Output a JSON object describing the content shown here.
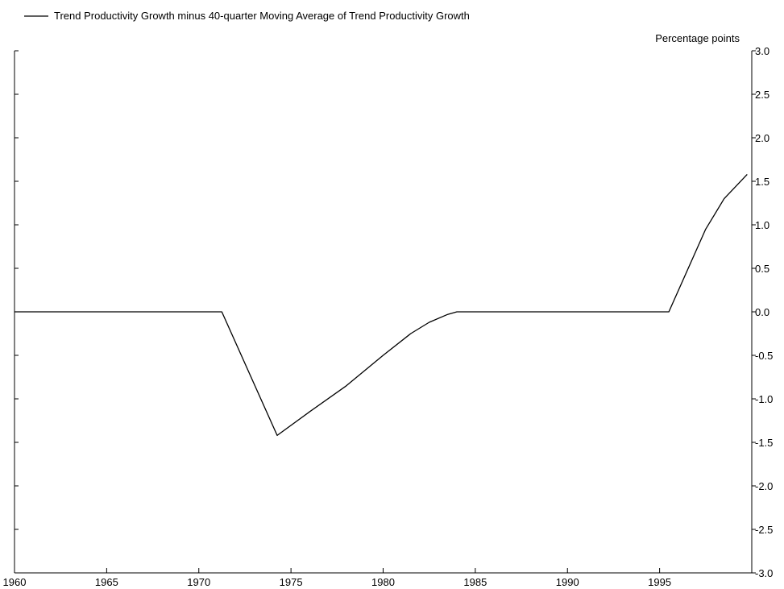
{
  "chart_data": {
    "type": "line",
    "title": "",
    "xlabel": "",
    "ylabel": "Percentage points",
    "xlim": [
      1960,
      2000
    ],
    "ylim": [
      -3.0,
      3.0
    ],
    "x_ticks": [
      1960,
      1965,
      1970,
      1975,
      1980,
      1985,
      1990,
      1995
    ],
    "x_tick_labels": [
      "1960",
      "1965",
      "1970",
      "1975",
      "1980",
      "1985",
      "1990",
      "1995"
    ],
    "y_ticks": [
      3.0,
      2.5,
      2.0,
      1.5,
      1.0,
      0.5,
      0.0,
      -0.5,
      -1.0,
      -1.5,
      -2.0,
      -2.5,
      -3.0
    ],
    "y_tick_labels": [
      "3.0",
      "2.5",
      "2.0",
      "1.5",
      "1.0",
      "0.5",
      "0.0",
      "-0.5",
      "-1.0",
      "-1.5",
      "-2.0",
      "-2.5",
      "-3.0"
    ],
    "y_axis_side": "right",
    "grid": false,
    "legend_position": "top-left",
    "series": [
      {
        "name": "Trend Productivity Growth minus 40-quarter Moving Average of Trend Productivity Growth",
        "color": "#000000",
        "x": [
          1960.0,
          1971.25,
          1974.25,
          1976.0,
          1978.0,
          1980.0,
          1981.5,
          1982.5,
          1983.5,
          1984.0,
          1995.5,
          1997.5,
          1998.5,
          1999.75
        ],
        "y": [
          0.0,
          0.0,
          -1.42,
          -1.15,
          -0.85,
          -0.5,
          -0.25,
          -0.12,
          -0.03,
          0.0,
          0.0,
          0.95,
          1.3,
          1.58
        ]
      }
    ]
  }
}
